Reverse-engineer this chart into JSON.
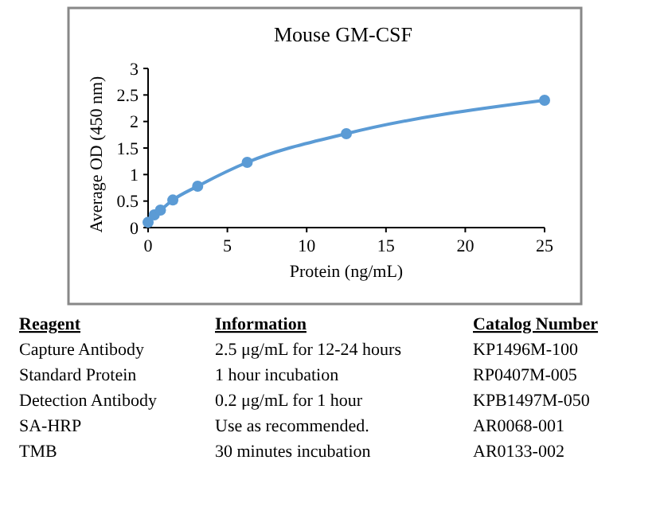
{
  "chart_data": {
    "type": "line",
    "title": "Mouse GM-CSF",
    "xlabel": "Protein (ng/mL)",
    "ylabel": "Average OD (450 nm)",
    "x": [
      0,
      0.39,
      0.78,
      1.56,
      3.125,
      6.25,
      12.5,
      25
    ],
    "series": [
      {
        "color": "#5b9bd5",
        "values": [
          0.1,
          0.24,
          0.33,
          0.52,
          0.78,
          1.23,
          1.77,
          2.4
        ]
      }
    ],
    "xlim": [
      0,
      25
    ],
    "xticks": [
      0,
      5,
      10,
      15,
      20,
      25
    ],
    "ylim": [
      0,
      3
    ],
    "yticks": [
      0,
      0.5,
      1,
      1.5,
      2,
      2.5,
      3
    ],
    "marker": "circle",
    "line_style": "solid",
    "grid": false,
    "annotations": [
      "Reagent",
      "Information",
      "Catalog Number",
      "Capture Antibody",
      "2.5 μg/mL for 12-24 hours",
      "KP1496M-100",
      "Standard Protein",
      "1 hour incubation",
      "RP0407M-005",
      "Detection Antibody",
      "0.2 μg/mL for 1 hour",
      "KPB1497M-050",
      "SA-HRP",
      "Use as recommended.",
      "AR0068-001",
      "TMB",
      "30 minutes incubation",
      "AR0133-002"
    ]
  }
}
